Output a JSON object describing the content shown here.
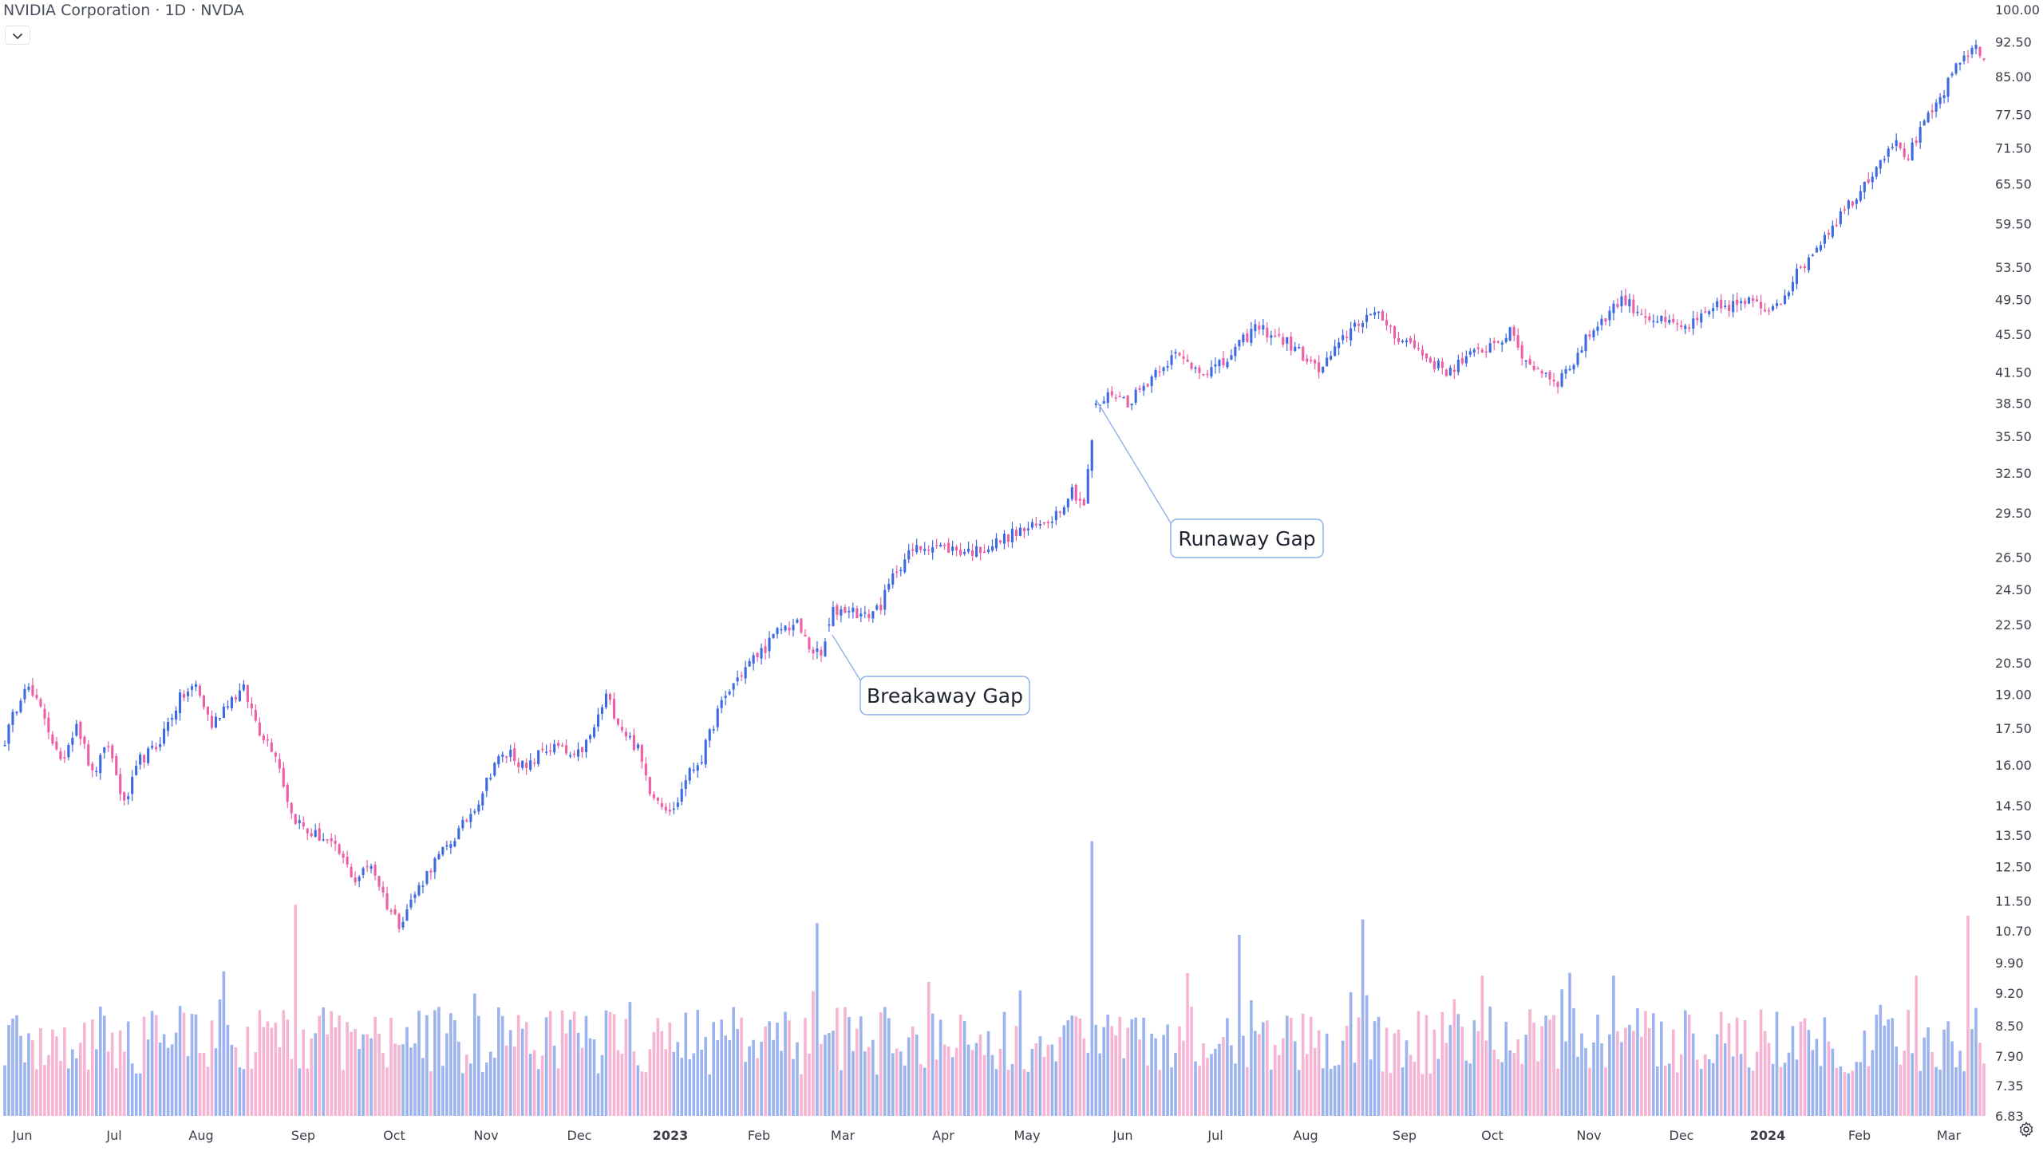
{
  "header": {
    "symbol_title": "NVIDIA Corporation · 1D · NVDA"
  },
  "icons": {
    "legend_toggle": "chevron-down-icon",
    "settings": "gear-icon"
  },
  "colors": {
    "up": "#3d6ae0",
    "down": "#ec5fa4",
    "volume_up": "#9bb3ee",
    "volume_down": "#f6b3d3",
    "axis_text": "#3b3f4a",
    "callout_border": "#8fb0ea"
  },
  "chart_data": {
    "type": "candlestick",
    "symbol": "NVDA",
    "interval": "1D",
    "y_scale": "log",
    "grid": false,
    "y_range": [
      6.83,
      100
    ],
    "y_tick_labels": [
      "100.00",
      "92.50",
      "85.00",
      "77.50",
      "71.50",
      "65.50",
      "59.50",
      "53.50",
      "49.50",
      "45.50",
      "41.50",
      "38.50",
      "35.50",
      "32.50",
      "29.50",
      "26.50",
      "24.50",
      "22.50",
      "20.50",
      "19.00",
      "17.50",
      "16.00",
      "14.50",
      "13.50",
      "12.50",
      "11.50",
      "10.70",
      "9.90",
      "9.20",
      "8.50",
      "7.90",
      "7.35",
      "6.83"
    ],
    "x_tick_labels": [
      "Jun",
      "Jul",
      "Aug",
      "Sep",
      "Oct",
      "Nov",
      "Dec",
      "2023",
      "Feb",
      "Mar",
      "Apr",
      "May",
      "Jun",
      "Jul",
      "Aug",
      "Sep",
      "Oct",
      "Nov",
      "Dec",
      "2024",
      "Feb",
      "Mar"
    ],
    "x_tick_bold": [
      "2023",
      "2024"
    ],
    "price_path_knots": [
      [
        0,
        17
      ],
      [
        5,
        19.5
      ],
      [
        10,
        18
      ],
      [
        14,
        16
      ],
      [
        18,
        17.8
      ],
      [
        22,
        15.6
      ],
      [
        26,
        16.8
      ],
      [
        30,
        14.5
      ],
      [
        34,
        16.2
      ],
      [
        38,
        16.7
      ],
      [
        44,
        18.8
      ],
      [
        48,
        19.4
      ],
      [
        52,
        17.6
      ],
      [
        56,
        18.7
      ],
      [
        60,
        19.2
      ],
      [
        64,
        17.4
      ],
      [
        68,
        16.5
      ],
      [
        72,
        14.2
      ],
      [
        76,
        13.6
      ],
      [
        80,
        13.4
      ],
      [
        84,
        12.9
      ],
      [
        88,
        12.1
      ],
      [
        92,
        12.6
      ],
      [
        96,
        11.4
      ],
      [
        99,
        10.9
      ],
      [
        103,
        11.7
      ],
      [
        107,
        12.5
      ],
      [
        111,
        13.1
      ],
      [
        115,
        13.8
      ],
      [
        119,
        14.7
      ],
      [
        123,
        16.1
      ],
      [
        127,
        16.5
      ],
      [
        131,
        15.8
      ],
      [
        135,
        16.6
      ],
      [
        139,
        16.7
      ],
      [
        143,
        16.2
      ],
      [
        147,
        17.1
      ],
      [
        151,
        18.9
      ],
      [
        155,
        17.5
      ],
      [
        159,
        16.6
      ],
      [
        162,
        15.1
      ],
      [
        165,
        14.6
      ],
      [
        168,
        14.3
      ],
      [
        171,
        15.5
      ],
      [
        175,
        16.3
      ],
      [
        179,
        18.2
      ],
      [
        183,
        19.5
      ],
      [
        187,
        20.5
      ],
      [
        191,
        21.3
      ],
      [
        195,
        22.3
      ],
      [
        199,
        22.5
      ],
      [
        202,
        21.3
      ],
      [
        205,
        20.8
      ],
      [
        208,
        23.2
      ],
      [
        212,
        23.4
      ],
      [
        216,
        22.9
      ],
      [
        220,
        23.6
      ],
      [
        224,
        25.8
      ],
      [
        228,
        26.9
      ],
      [
        232,
        27.3
      ],
      [
        236,
        27.1
      ],
      [
        240,
        26.9
      ],
      [
        244,
        26.9
      ],
      [
        248,
        27.3
      ],
      [
        252,
        27.9
      ],
      [
        256,
        28.3
      ],
      [
        260,
        28.6
      ],
      [
        264,
        29.5
      ],
      [
        268,
        31.2
      ],
      [
        271,
        30.1
      ],
      [
        274,
        38.1
      ],
      [
        278,
        39.5
      ],
      [
        282,
        38.6
      ],
      [
        286,
        40.1
      ],
      [
        290,
        42.1
      ],
      [
        294,
        43.2
      ],
      [
        298,
        42.2
      ],
      [
        302,
        41.6
      ],
      [
        306,
        42.3
      ],
      [
        310,
        44.3
      ],
      [
        314,
        46.3
      ],
      [
        318,
        45.6
      ],
      [
        322,
        44.6
      ],
      [
        326,
        43.2
      ],
      [
        330,
        41.6
      ],
      [
        334,
        43.6
      ],
      [
        338,
        46.2
      ],
      [
        342,
        47.6
      ],
      [
        346,
        47.3
      ],
      [
        350,
        45.1
      ],
      [
        354,
        44.2
      ],
      [
        358,
        42.6
      ],
      [
        362,
        41.6
      ],
      [
        366,
        42.6
      ],
      [
        370,
        43.6
      ],
      [
        374,
        44.6
      ],
      [
        378,
        45.6
      ],
      [
        382,
        42.6
      ],
      [
        386,
        41.6
      ],
      [
        390,
        40.6
      ],
      [
        394,
        42.6
      ],
      [
        398,
        45.6
      ],
      [
        402,
        47.6
      ],
      [
        406,
        49.6
      ],
      [
        410,
        48.2
      ],
      [
        414,
        47.2
      ],
      [
        418,
        46.6
      ],
      [
        422,
        46.2
      ],
      [
        426,
        47.2
      ],
      [
        430,
        48.6
      ],
      [
        434,
        48.8
      ],
      [
        438,
        49.2
      ],
      [
        442,
        48.3
      ],
      [
        446,
        49.6
      ],
      [
        450,
        52.6
      ],
      [
        454,
        55.6
      ],
      [
        458,
        58.6
      ],
      [
        462,
        61.6
      ],
      [
        466,
        64.6
      ],
      [
        470,
        68.6
      ],
      [
        474,
        72.6
      ],
      [
        478,
        70.1
      ],
      [
        482,
        75.6
      ],
      [
        486,
        80.6
      ],
      [
        490,
        86.6
      ],
      [
        494,
        91.6
      ],
      [
        497,
        88.6
      ]
    ],
    "total_days": 498,
    "breakaway_gap_day": 207,
    "runaway_gap_day": 274,
    "volume_spike_days": [
      [
        204,
        10.9
      ],
      [
        273,
        13.3
      ],
      [
        55,
        9.7
      ],
      [
        73,
        11.4
      ],
      [
        341,
        11.0
      ],
      [
        310,
        10.6
      ],
      [
        480,
        9.6
      ],
      [
        493,
        11.1
      ],
      [
        404,
        9.6
      ],
      [
        371,
        9.6
      ]
    ],
    "annotations": [
      {
        "id": "breakaway",
        "label": "Breakaway Gap"
      },
      {
        "id": "runaway",
        "label": "Runaway Gap"
      }
    ]
  }
}
